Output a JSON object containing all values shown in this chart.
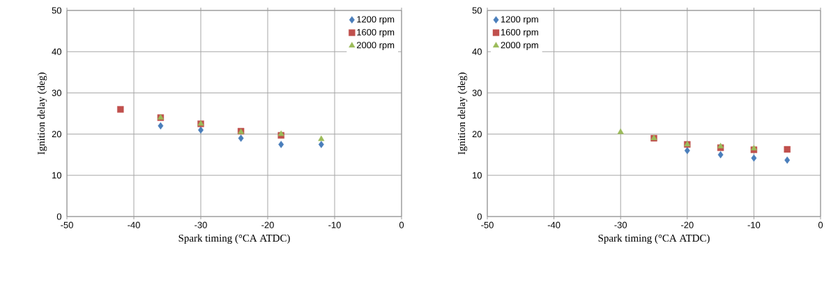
{
  "chart_data": [
    {
      "type": "scatter",
      "xlabel": "Spark timing (°CA ATDC)",
      "ylabel": "Ignition delay (deg)",
      "xlim": [
        -50,
        0
      ],
      "ylim": [
        0,
        50
      ],
      "xticks": [
        -50,
        -40,
        -30,
        -20,
        -10,
        0
      ],
      "yticks": [
        0,
        10,
        20,
        30,
        40,
        50
      ],
      "grid": true,
      "legend": "top right",
      "series": [
        {
          "name": "1200 rpm",
          "color": "#4a7ebb",
          "marker": "diamond",
          "x": [
            -36,
            -30,
            -24,
            -18,
            -12
          ],
          "values": [
            22,
            21,
            19,
            17.5,
            17.5
          ]
        },
        {
          "name": "1600 rpm",
          "color": "#c0504d",
          "marker": "square",
          "x": [
            -42,
            -36,
            -30,
            -24,
            -18
          ],
          "values": [
            26,
            24,
            22.5,
            20.7,
            19.7
          ]
        },
        {
          "name": "2000 rpm",
          "color": "#9bbb59",
          "marker": "triangle",
          "x": [
            -36,
            -30,
            -24,
            -18,
            -12
          ],
          "values": [
            24,
            22.5,
            20.5,
            20,
            18.8
          ]
        }
      ]
    },
    {
      "type": "scatter",
      "xlabel": "Spark timing (°CA ATDC)",
      "ylabel": "Ignition delay (deg)",
      "xlim": [
        -50,
        0
      ],
      "ylim": [
        0,
        50
      ],
      "xticks": [
        -50,
        -40,
        -30,
        -20,
        -10,
        0
      ],
      "yticks": [
        0,
        10,
        20,
        30,
        40,
        50
      ],
      "grid": true,
      "legend": "top left",
      "series": [
        {
          "name": "1200 rpm",
          "color": "#4a7ebb",
          "marker": "diamond",
          "x": [
            -20,
            -15,
            -10,
            -5
          ],
          "values": [
            16,
            15,
            14.2,
            13.7
          ]
        },
        {
          "name": "1600 rpm",
          "color": "#c0504d",
          "marker": "square",
          "x": [
            -25,
            -20,
            -15,
            -10,
            -5
          ],
          "values": [
            19,
            17.5,
            16.7,
            16.2,
            16.3
          ]
        },
        {
          "name": "2000 rpm",
          "color": "#9bbb59",
          "marker": "triangle",
          "x": [
            -30,
            -25,
            -20,
            -15,
            -10
          ],
          "values": [
            20.5,
            19,
            17.5,
            17,
            16.5
          ]
        }
      ]
    }
  ]
}
